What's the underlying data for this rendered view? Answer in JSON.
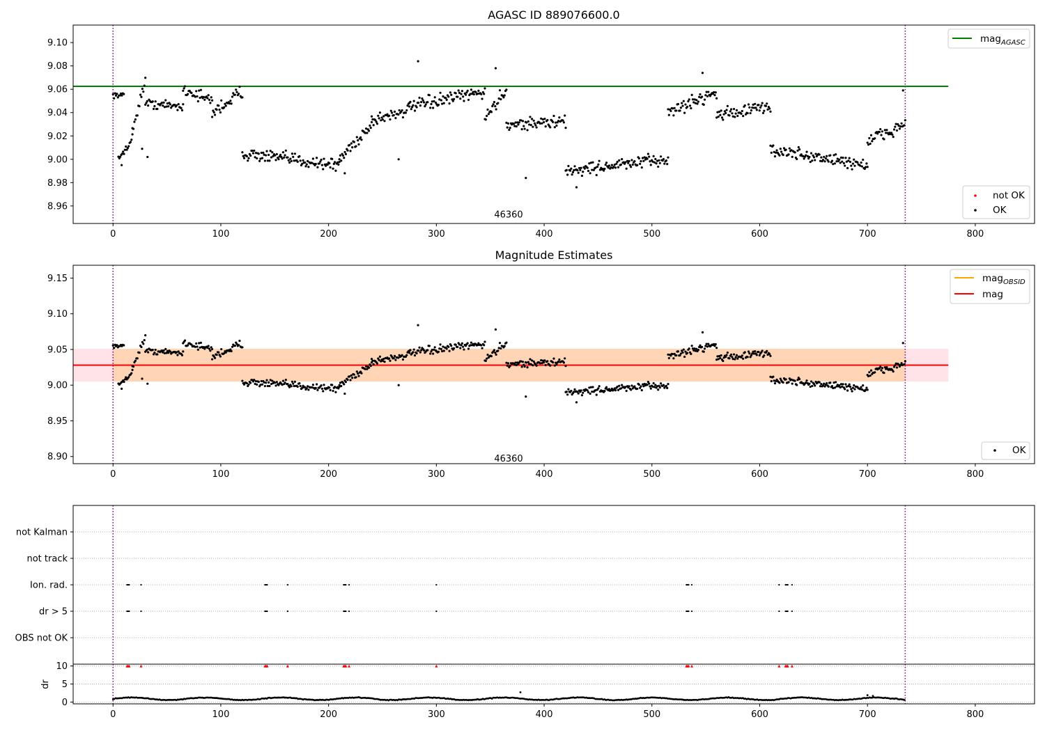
{
  "chart_data": [
    {
      "type": "scatter",
      "title": "AGASC ID 889076600.0",
      "xlim": [
        -37,
        855
      ],
      "ylim": [
        8.945,
        9.115
      ],
      "xticks": [
        0,
        100,
        200,
        300,
        400,
        500,
        600,
        700,
        800
      ],
      "yticks": [
        "8.96",
        "8.98",
        "9.00",
        "9.02",
        "9.04",
        "9.06",
        "9.08",
        "9.10"
      ],
      "mag_agasc": 9.0625,
      "line_x_range": [
        -37,
        775
      ],
      "vlines": [
        0,
        735
      ],
      "annotation": {
        "text": "46360",
        "x": 367,
        "y": 8.953
      },
      "legend_upper": [
        {
          "label": "mag",
          "sub": "AGASC",
          "color": "#008000"
        }
      ],
      "legend_lower": [
        {
          "label": "not OK",
          "color": "#ff0000",
          "marker": "dot"
        },
        {
          "label": "OK",
          "color": "#000000",
          "marker": "dot"
        }
      ],
      "segments": [
        {
          "x": [
            0,
            10
          ],
          "y": [
            9.055,
            9.055
          ],
          "spread": 0.003
        },
        {
          "x": [
            5,
            18
          ],
          "y": [
            9.0,
            9.018
          ],
          "spread": 0.005
        },
        {
          "x": [
            18,
            30
          ],
          "y": [
            9.025,
            9.068
          ],
          "spread": 0.006
        },
        {
          "x": [
            30,
            65
          ],
          "y": [
            9.048,
            9.045
          ],
          "spread": 0.006
        },
        {
          "x": [
            65,
            92
          ],
          "y": [
            9.06,
            9.05
          ],
          "spread": 0.007
        },
        {
          "x": [
            92,
            120
          ],
          "y": [
            9.04,
            9.058
          ],
          "spread": 0.009
        },
        {
          "x": [
            120,
            210
          ],
          "y": [
            9.005,
            8.995
          ],
          "spread": 0.008
        },
        {
          "x": [
            210,
            240
          ],
          "y": [
            9.0,
            9.03
          ],
          "spread": 0.009
        },
        {
          "x": [
            240,
            275
          ],
          "y": [
            9.033,
            9.043
          ],
          "spread": 0.008
        },
        {
          "x": [
            275,
            345
          ],
          "y": [
            9.045,
            9.058
          ],
          "spread": 0.008
        },
        {
          "x": [
            345,
            365
          ],
          "y": [
            9.035,
            9.06
          ],
          "spread": 0.008
        },
        {
          "x": [
            365,
            420
          ],
          "y": [
            9.03,
            9.032
          ],
          "spread": 0.008
        },
        {
          "x": [
            420,
            515
          ],
          "y": [
            8.99,
            9.0
          ],
          "spread": 0.008
        },
        {
          "x": [
            515,
            560
          ],
          "y": [
            9.04,
            9.058
          ],
          "spread": 0.008
        },
        {
          "x": [
            560,
            610
          ],
          "y": [
            9.038,
            9.045
          ],
          "spread": 0.008
        },
        {
          "x": [
            610,
            700
          ],
          "y": [
            9.008,
            8.995
          ],
          "spread": 0.008
        },
        {
          "x": [
            700,
            735
          ],
          "y": [
            9.015,
            9.03
          ],
          "spread": 0.01
        }
      ],
      "outliers": [
        [
          8,
          8.995
        ],
        [
          32,
          9.002
        ],
        [
          27,
          9.009
        ],
        [
          383,
          8.984
        ],
        [
          215,
          8.988
        ],
        [
          283,
          9.084
        ],
        [
          355,
          9.078
        ],
        [
          265,
          9.0
        ],
        [
          547,
          9.074
        ],
        [
          733,
          9.059
        ],
        [
          430,
          8.976
        ]
      ]
    },
    {
      "type": "scatter",
      "title": "Magnitude Estimates",
      "xlim": [
        -37,
        855
      ],
      "ylim": [
        8.89,
        9.168
      ],
      "xticks": [
        0,
        100,
        200,
        300,
        400,
        500,
        600,
        700,
        800
      ],
      "yticks": [
        "8.90",
        "8.95",
        "9.00",
        "9.05",
        "9.10",
        "9.15"
      ],
      "mag": 9.028,
      "mag_obsid_band": [
        9.005,
        9.051
      ],
      "line_x_range": [
        -37,
        775
      ],
      "vlines": [
        0,
        735
      ],
      "annotation": {
        "text": "46360",
        "x": 367,
        "y": 8.898
      },
      "legend_upper": [
        {
          "label": "mag",
          "sub": "OBSID",
          "color": "#ffa500"
        },
        {
          "label": "mag",
          "sub": "",
          "color": "#ff0000"
        }
      ],
      "legend_lower": [
        {
          "label": "OK",
          "color": "#000000",
          "marker": "dot"
        }
      ]
    },
    {
      "type": "scatter",
      "title": "",
      "xlim": [
        -37,
        855
      ],
      "category_labels": [
        "not Kalman",
        "not track",
        "Ion. rad.",
        "dr > 5",
        "OBS not OK"
      ],
      "flag_x": [
        13,
        14,
        15,
        26,
        141,
        142,
        143,
        162,
        214,
        215,
        216,
        219,
        300,
        532,
        533,
        534,
        537,
        618,
        624,
        625,
        626,
        630
      ],
      "flag_rows": [
        "Ion. rad.",
        "dr > 5"
      ],
      "vlines": [
        0,
        735
      ]
    },
    {
      "type": "scatter",
      "title": "",
      "ylabel": "dr",
      "xlim": [
        -37,
        855
      ],
      "ylim": [
        -0.5,
        10.5
      ],
      "yticks": [
        "0",
        "5",
        "10"
      ],
      "xticks": [
        0,
        100,
        200,
        300,
        400,
        500,
        600,
        700,
        800
      ],
      "dr_baseline": 0.9,
      "dr_outliers": [
        [
          378,
          2.7
        ],
        [
          700,
          1.9
        ],
        [
          705,
          1.7
        ]
      ],
      "clipped_x": [
        13,
        14,
        15,
        26,
        141,
        142,
        143,
        162,
        214,
        215,
        216,
        219,
        300,
        532,
        533,
        534,
        537,
        618,
        624,
        625,
        626,
        630
      ],
      "clipped_y": 10,
      "vlines": [
        0,
        735
      ]
    }
  ]
}
